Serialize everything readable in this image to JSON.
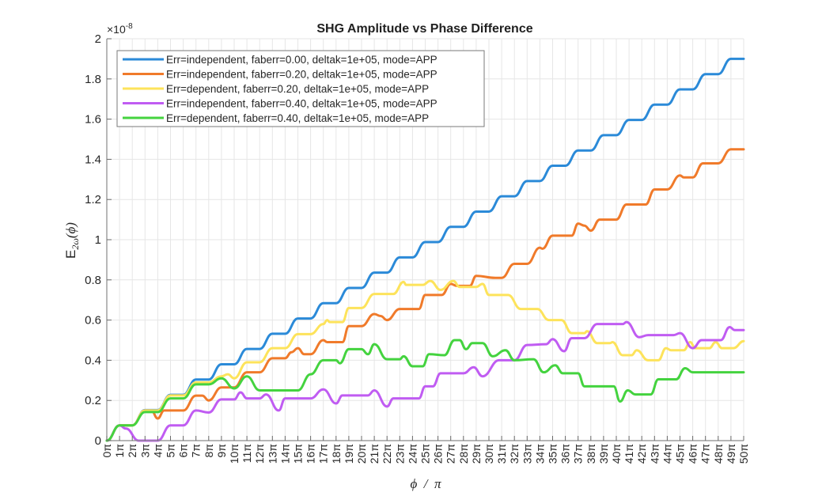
{
  "chart_data": {
    "type": "line",
    "title": "SHG Amplitude vs Phase Difference",
    "xlabel": "ϕ  /  π",
    "ylabel_main": "E",
    "ylabel_sub": "2ω",
    "ylabel_arg": "(ϕ)",
    "y_exponent_base": "×10",
    "y_exponent_power": "-8",
    "xlim": [
      0,
      50
    ],
    "ylim": [
      0,
      2
    ],
    "grid": true,
    "legend_position": "top-left",
    "y_ticks": [
      {
        "value": 0,
        "label": "0"
      },
      {
        "value": 0.2,
        "label": "0.2"
      },
      {
        "value": 0.4,
        "label": "0.4"
      },
      {
        "value": 0.6,
        "label": "0.6"
      },
      {
        "value": 0.8,
        "label": "0.8"
      },
      {
        "value": 1.0,
        "label": "1"
      },
      {
        "value": 1.2,
        "label": "1.2"
      },
      {
        "value": 1.4,
        "label": "1.4"
      },
      {
        "value": 1.6,
        "label": "1.6"
      },
      {
        "value": 1.8,
        "label": "1.8"
      },
      {
        "value": 2.0,
        "label": "2"
      }
    ],
    "x_ticks": [
      {
        "value": 0,
        "label": "0π"
      },
      {
        "value": 1,
        "label": "1π"
      },
      {
        "value": 2,
        "label": "2π"
      },
      {
        "value": 3,
        "label": "3π"
      },
      {
        "value": 4,
        "label": "4π"
      },
      {
        "value": 5,
        "label": "5π"
      },
      {
        "value": 6,
        "label": "6π"
      },
      {
        "value": 7,
        "label": "7π"
      },
      {
        "value": 8,
        "label": "8π"
      },
      {
        "value": 9,
        "label": "9π"
      },
      {
        "value": 10,
        "label": "10π"
      },
      {
        "value": 11,
        "label": "11π"
      },
      {
        "value": 12,
        "label": "12π"
      },
      {
        "value": 13,
        "label": "13π"
      },
      {
        "value": 14,
        "label": "14π"
      },
      {
        "value": 15,
        "label": "15π"
      },
      {
        "value": 16,
        "label": "16π"
      },
      {
        "value": 17,
        "label": "17π"
      },
      {
        "value": 18,
        "label": "18π"
      },
      {
        "value": 19,
        "label": "19π"
      },
      {
        "value": 20,
        "label": "20π"
      },
      {
        "value": 21,
        "label": "21π"
      },
      {
        "value": 22,
        "label": "22π"
      },
      {
        "value": 23,
        "label": "23π"
      },
      {
        "value": 24,
        "label": "24π"
      },
      {
        "value": 25,
        "label": "25π"
      },
      {
        "value": 26,
        "label": "26π"
      },
      {
        "value": 27,
        "label": "27π"
      },
      {
        "value": 28,
        "label": "28π"
      },
      {
        "value": 29,
        "label": "29π"
      },
      {
        "value": 30,
        "label": "30π"
      },
      {
        "value": 31,
        "label": "31π"
      },
      {
        "value": 32,
        "label": "32π"
      },
      {
        "value": 33,
        "label": "33π"
      },
      {
        "value": 34,
        "label": "34π"
      },
      {
        "value": 35,
        "label": "35π"
      },
      {
        "value": 36,
        "label": "36π"
      },
      {
        "value": 37,
        "label": "37π"
      },
      {
        "value": 38,
        "label": "38π"
      },
      {
        "value": 39,
        "label": "39π"
      },
      {
        "value": 40,
        "label": "40π"
      },
      {
        "value": 41,
        "label": "41π"
      },
      {
        "value": 42,
        "label": "42π"
      },
      {
        "value": 43,
        "label": "43π"
      },
      {
        "value": 44,
        "label": "44π"
      },
      {
        "value": 45,
        "label": "45π"
      },
      {
        "value": 46,
        "label": "46π"
      },
      {
        "value": 47,
        "label": "47π"
      },
      {
        "value": 48,
        "label": "48π"
      },
      {
        "value": 49,
        "label": "49π"
      },
      {
        "value": 50,
        "label": "50π"
      }
    ],
    "series": [
      {
        "name": "Err=independent, faberr=0.00, deltak=1e+05, mode=APP",
        "color": "#2b8ad8",
        "x": [
          0,
          1,
          2,
          3,
          4,
          5,
          6,
          7,
          8,
          9,
          10,
          11,
          12,
          13,
          14,
          15,
          16,
          17,
          18,
          19,
          20,
          21,
          22,
          23,
          24,
          25,
          26,
          27,
          28,
          29,
          30,
          31,
          32,
          33,
          34,
          35,
          36,
          37,
          38,
          39,
          40,
          41,
          42,
          43,
          44,
          45,
          46,
          47,
          48,
          49,
          50
        ],
        "y": [
          0,
          0.076,
          0.076,
          0.152,
          0.152,
          0.228,
          0.228,
          0.304,
          0.304,
          0.38,
          0.38,
          0.456,
          0.456,
          0.532,
          0.532,
          0.608,
          0.608,
          0.684,
          0.684,
          0.76,
          0.76,
          0.836,
          0.836,
          0.912,
          0.912,
          0.988,
          0.988,
          1.064,
          1.064,
          1.14,
          1.14,
          1.216,
          1.216,
          1.292,
          1.292,
          1.368,
          1.368,
          1.444,
          1.444,
          1.52,
          1.52,
          1.596,
          1.596,
          1.672,
          1.672,
          1.748,
          1.748,
          1.824,
          1.824,
          1.9,
          1.9
        ]
      },
      {
        "name": "Err=independent, faberr=0.20, deltak=1e+05, mode=APP",
        "color": "#f07a2a",
        "x": [
          0,
          1,
          2,
          3,
          3.5,
          4,
          4.5,
          6,
          7,
          7.5,
          8,
          9,
          10,
          11,
          12,
          13,
          14,
          14.5,
          15,
          15.5,
          16,
          17,
          17.3,
          18.5,
          19,
          20,
          21,
          21.5,
          22,
          23,
          24.5,
          25,
          26.3,
          27,
          27.5,
          28.5,
          29,
          30.5,
          31,
          32,
          33,
          34,
          34.2,
          35,
          36.5,
          37,
          37.5,
          38,
          38.7,
          40,
          40.8,
          42.3,
          43,
          44,
          45,
          45.3,
          46,
          46.8,
          48,
          49,
          50
        ],
        "y": [
          0,
          0.076,
          0.076,
          0.15,
          0.15,
          0.11,
          0.15,
          0.15,
          0.224,
          0.224,
          0.2,
          0.265,
          0.265,
          0.34,
          0.34,
          0.41,
          0.41,
          0.44,
          0.46,
          0.43,
          0.43,
          0.5,
          0.49,
          0.49,
          0.57,
          0.57,
          0.63,
          0.62,
          0.6,
          0.655,
          0.655,
          0.725,
          0.725,
          0.78,
          0.77,
          0.77,
          0.82,
          0.81,
          0.81,
          0.88,
          0.88,
          0.96,
          0.955,
          1.02,
          1.02,
          1.08,
          1.07,
          1.045,
          1.1,
          1.1,
          1.175,
          1.175,
          1.25,
          1.25,
          1.32,
          1.31,
          1.31,
          1.38,
          1.38,
          1.45,
          1.45
        ]
      },
      {
        "name": "Err=dependent, faberr=0.20, deltak=1e+05, mode=APP",
        "color": "#fde35b",
        "x": [
          0,
          1,
          2,
          3,
          4,
          5,
          6,
          7,
          8,
          9,
          9.5,
          10,
          11,
          12,
          13,
          14,
          15,
          16,
          17,
          17.3,
          17.5,
          18.5,
          19,
          20,
          21,
          22.5,
          23.3,
          23.5,
          24.8,
          25.4,
          26.2,
          27.2,
          27.7,
          29,
          29.5,
          30,
          31.5,
          32.5,
          33.8,
          34.7,
          35.7,
          36.5,
          37.5,
          37.7,
          38.5,
          39.5,
          39.7,
          40.5,
          41.2,
          41.6,
          42.5,
          43.3,
          43.9,
          44.3,
          45.3,
          45.8,
          46.2,
          47.3,
          47.8,
          48.3,
          49.2,
          50
        ],
        "y": [
          0,
          0.076,
          0.076,
          0.15,
          0.15,
          0.225,
          0.225,
          0.29,
          0.29,
          0.32,
          0.33,
          0.31,
          0.39,
          0.39,
          0.46,
          0.46,
          0.53,
          0.53,
          0.58,
          0.6,
          0.59,
          0.59,
          0.66,
          0.66,
          0.73,
          0.73,
          0.79,
          0.775,
          0.775,
          0.795,
          0.75,
          0.795,
          0.765,
          0.765,
          0.78,
          0.725,
          0.725,
          0.655,
          0.655,
          0.6,
          0.6,
          0.535,
          0.535,
          0.545,
          0.485,
          0.485,
          0.49,
          0.425,
          0.425,
          0.45,
          0.4,
          0.4,
          0.46,
          0.45,
          0.45,
          0.49,
          0.46,
          0.46,
          0.49,
          0.46,
          0.46,
          0.495
        ]
      },
      {
        "name": "Err=independent, faberr=0.40, deltak=1e+05, mode=APP",
        "color": "#c05cf2",
        "x": [
          0,
          1,
          1.5,
          2.5,
          4,
          5,
          6,
          7,
          8,
          9,
          10,
          10.5,
          11,
          12,
          12.5,
          13.5,
          14,
          16,
          17,
          18,
          18.5,
          20.5,
          21,
          22,
          22.5,
          24.5,
          25,
          25.6,
          26.2,
          28,
          28.8,
          29.5,
          30.8,
          32,
          33,
          34.5,
          35,
          35.9,
          36.5,
          37.5,
          38.5,
          40.5,
          40.8,
          41.8,
          42.5,
          44.5,
          45,
          46,
          46.7,
          48.2,
          48.9,
          49.3,
          50
        ],
        "y": [
          0,
          0.076,
          0.06,
          0,
          0,
          0.076,
          0.076,
          0.15,
          0.14,
          0.205,
          0.205,
          0.24,
          0.21,
          0.21,
          0.23,
          0.15,
          0.21,
          0.21,
          0.255,
          0.185,
          0.225,
          0.225,
          0.25,
          0.17,
          0.21,
          0.21,
          0.27,
          0.27,
          0.335,
          0.335,
          0.365,
          0.32,
          0.4,
          0.4,
          0.476,
          0.48,
          0.505,
          0.445,
          0.51,
          0.51,
          0.58,
          0.58,
          0.59,
          0.515,
          0.525,
          0.525,
          0.535,
          0.46,
          0.5,
          0.5,
          0.565,
          0.55,
          0.55
        ]
      },
      {
        "name": "Err=dependent, faberr=0.40, deltak=1e+05, mode=APP",
        "color": "#44d33f",
        "x": [
          0,
          1,
          2,
          3,
          4,
          5,
          6,
          7,
          8,
          9,
          10,
          11,
          12,
          15,
          16,
          17,
          18,
          18.3,
          19,
          20,
          20.5,
          21,
          22,
          23,
          23.3,
          24,
          24.8,
          25.3,
          26.5,
          27.3,
          27.7,
          28.2,
          28.7,
          29.5,
          30.3,
          31.3,
          32,
          33.5,
          34.3,
          35.2,
          35.8,
          37,
          37.5,
          38.5,
          39.8,
          40.3,
          40.9,
          41.5,
          42.7,
          43.3,
          44.7,
          45.4,
          46,
          50
        ],
        "y": [
          0,
          0.076,
          0.076,
          0.142,
          0.142,
          0.21,
          0.21,
          0.28,
          0.28,
          0.31,
          0.26,
          0.32,
          0.25,
          0.25,
          0.33,
          0.4,
          0.4,
          0.385,
          0.455,
          0.455,
          0.43,
          0.48,
          0.405,
          0.405,
          0.42,
          0.37,
          0.37,
          0.43,
          0.425,
          0.5,
          0.5,
          0.455,
          0.485,
          0.485,
          0.42,
          0.45,
          0.4,
          0.405,
          0.34,
          0.375,
          0.335,
          0.335,
          0.27,
          0.27,
          0.27,
          0.195,
          0.25,
          0.23,
          0.23,
          0.305,
          0.305,
          0.36,
          0.34,
          0.34
        ]
      }
    ]
  }
}
